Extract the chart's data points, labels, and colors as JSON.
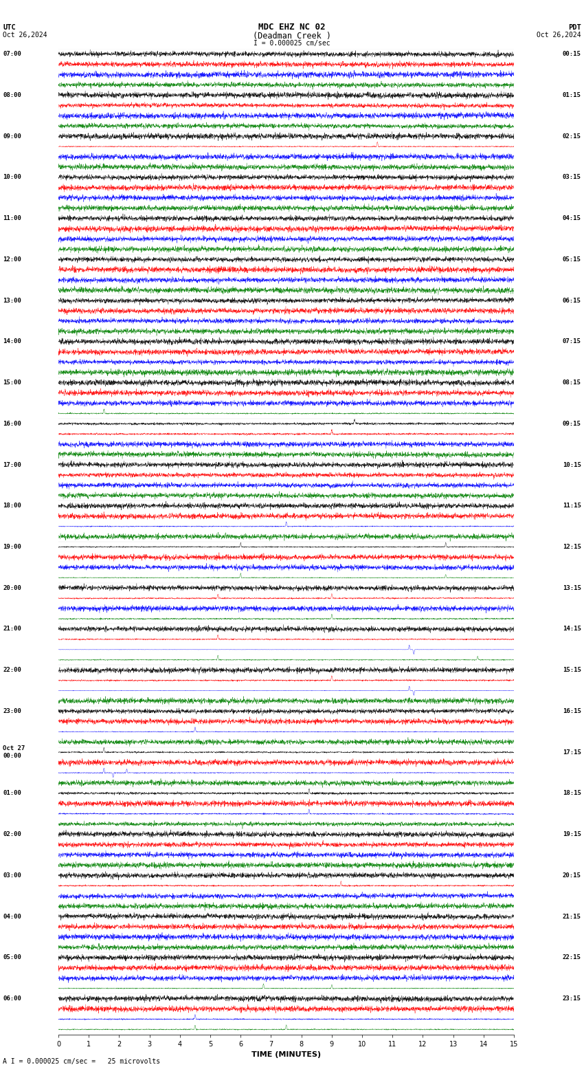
{
  "title_line1": "MDC EHZ NC 02",
  "title_line2": "(Deadman Creek )",
  "title_scale": "I = 0.000025 cm/sec",
  "left_header": "UTC",
  "left_date": "Oct 26,2024",
  "right_header": "PDT",
  "right_date": "Oct 26,2024",
  "xlabel": "TIME (MINUTES)",
  "footer": "A I = 0.000025 cm/sec =   25 microvolts",
  "utc_labels": [
    "07:00",
    "08:00",
    "09:00",
    "10:00",
    "11:00",
    "12:00",
    "13:00",
    "14:00",
    "15:00",
    "16:00",
    "17:00",
    "18:00",
    "19:00",
    "20:00",
    "21:00",
    "22:00",
    "23:00",
    "Oct 27\n00:00",
    "01:00",
    "02:00",
    "03:00",
    "04:00",
    "05:00",
    "06:00"
  ],
  "pdt_labels": [
    "00:15",
    "01:15",
    "02:15",
    "03:15",
    "04:15",
    "05:15",
    "06:15",
    "07:15",
    "08:15",
    "09:15",
    "10:15",
    "11:15",
    "12:15",
    "13:15",
    "14:15",
    "15:15",
    "16:15",
    "17:15",
    "18:15",
    "19:15",
    "20:15",
    "21:15",
    "22:15",
    "23:15"
  ],
  "n_rows": 24,
  "n_cols": 4,
  "colors": [
    "black",
    "red",
    "blue",
    "green"
  ],
  "background": "white",
  "xmin": 0,
  "xmax": 15,
  "xticks": [
    0,
    1,
    2,
    3,
    4,
    5,
    6,
    7,
    8,
    9,
    10,
    11,
    12,
    13,
    14,
    15
  ]
}
